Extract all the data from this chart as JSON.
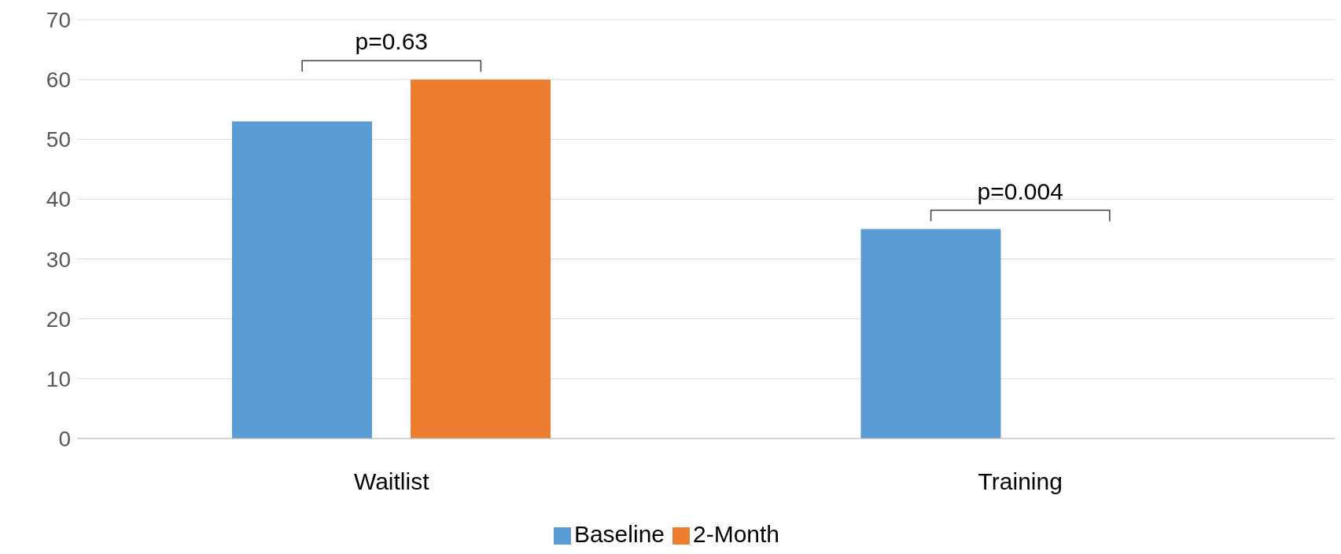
{
  "chart_data": {
    "type": "bar",
    "categories": [
      "Waitlist",
      "Training"
    ],
    "series": [
      {
        "name": "Baseline",
        "color": "#5b9bd5",
        "values": [
          53,
          35
        ]
      },
      {
        "name": "2-Month",
        "color": "#ed7d31",
        "values": [
          60,
          0
        ]
      }
    ],
    "ylim": [
      0,
      70
    ],
    "yticks": [
      0,
      10,
      20,
      30,
      40,
      50,
      60,
      70
    ],
    "grid": "y",
    "legend": "bottom",
    "annotations": [
      "p=0.63",
      "p=0.004"
    ]
  }
}
